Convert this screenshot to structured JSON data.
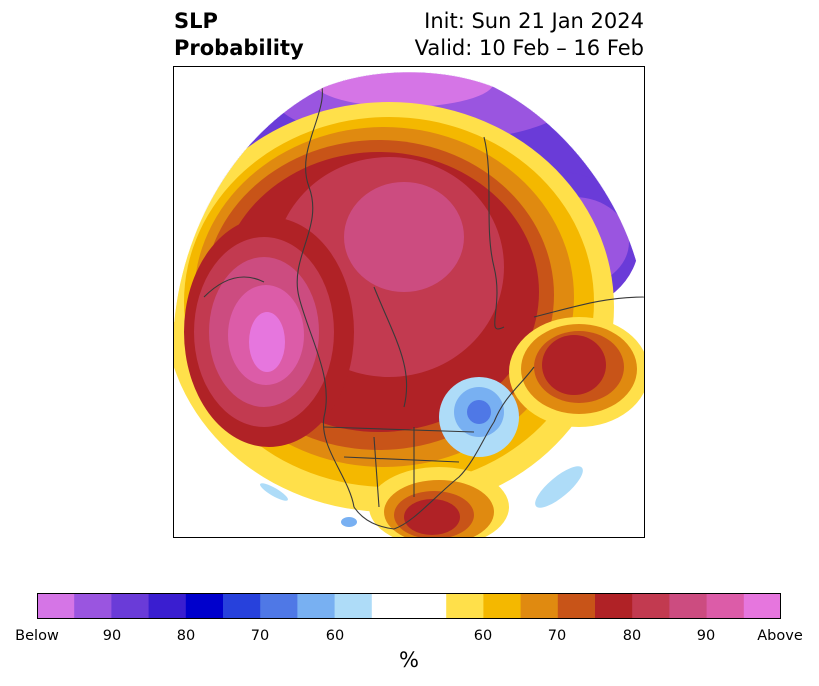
{
  "title": {
    "left_line1": "SLP",
    "left_line2": "Probability",
    "right_line1": "Init: Sun 21 Jan 2024",
    "right_line2": "Valid: 10 Feb – 16 Feb"
  },
  "map": {
    "projection": "north-polar-stereographic",
    "content": "probability of below/above normal sea level pressure"
  },
  "colorbar": {
    "colors": [
      "#d575e6",
      "#9a55e0",
      "#6a3bd8",
      "#3a1ed0",
      "#0000cc",
      "#2741dc",
      "#4f78e6",
      "#78b0f2",
      "#aedcf8",
      "#ffffff",
      "#ffe04a",
      "#f4b800",
      "#e08a10",
      "#c85418",
      "#b02226",
      "#c23a50",
      "#cc4c80",
      "#dc5ca8",
      "#e676de"
    ],
    "tick_labels": [
      "Below",
      "90",
      "80",
      "70",
      "60",
      "60",
      "70",
      "80",
      "90",
      "Above"
    ],
    "unit": "%"
  }
}
